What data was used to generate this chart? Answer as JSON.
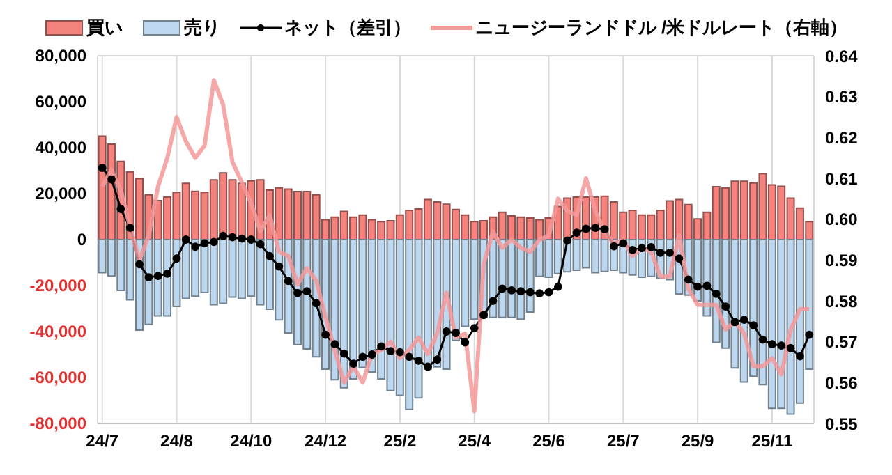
{
  "chart_data": {
    "type": "bar",
    "categories": [
      "24/7",
      null,
      null,
      null,
      null,
      null,
      null,
      null,
      "24/8",
      null,
      null,
      null,
      null,
      null,
      null,
      null,
      "24/10",
      null,
      null,
      null,
      null,
      null,
      null,
      null,
      "24/12",
      null,
      null,
      null,
      null,
      null,
      null,
      null,
      "25/2",
      null,
      null,
      null,
      null,
      null,
      null,
      null,
      "25/4",
      null,
      null,
      null,
      null,
      null,
      null,
      null,
      "25/6",
      null,
      null,
      null,
      null,
      null,
      null,
      null,
      "25/7",
      null,
      null,
      null,
      null,
      null,
      null,
      null,
      "25/9",
      null,
      null,
      null,
      null,
      null,
      null,
      null,
      "25/11",
      null,
      null,
      null,
      null
    ],
    "series": [
      {
        "name": "買い",
        "color": "#f4837d",
        "values": [
          45000,
          41500,
          34000,
          29500,
          26500,
          19500,
          17000,
          18500,
          20500,
          24500,
          21000,
          20500,
          26000,
          29000,
          26000,
          24500,
          25500,
          26000,
          21500,
          22500,
          22000,
          20900,
          20900,
          19500,
          8600,
          9800,
          12300,
          9800,
          10700,
          8600,
          7800,
          8200,
          10700,
          12700,
          13300,
          17400,
          16400,
          15400,
          13100,
          10700,
          7800,
          8200,
          9800,
          11900,
          10300,
          9800,
          9400,
          8600,
          9400,
          14400,
          18000,
          18500,
          18500,
          18500,
          18900,
          16400,
          11900,
          12700,
          10700,
          10700,
          12700,
          16800,
          17400,
          15200,
          9000,
          11900,
          23000,
          22500,
          25400,
          25400,
          24600,
          28700,
          23800,
          23200,
          18000,
          13700,
          7800
        ]
      },
      {
        "name": "売り",
        "color": "#bdd7ee",
        "values": [
          -14400,
          -15800,
          -22100,
          -26200,
          -39400,
          -36900,
          -33200,
          -33200,
          -29100,
          -25600,
          -24600,
          -23000,
          -28300,
          -27700,
          -25000,
          -25600,
          -24600,
          -28300,
          -30300,
          -34900,
          -40600,
          -45700,
          -47600,
          -51000,
          -56400,
          -61000,
          -64500,
          -60600,
          -55600,
          -57600,
          -60600,
          -65700,
          -67700,
          -73900,
          -68900,
          -56400,
          -55400,
          -56400,
          -43900,
          -37700,
          -34600,
          -33900,
          -33900,
          -33900,
          -33900,
          -34600,
          -31500,
          -16000,
          -16400,
          -14800,
          -14000,
          -13300,
          -12300,
          -14400,
          -13900,
          -13300,
          -14400,
          -15400,
          -16400,
          -16000,
          -16800,
          -17400,
          -23600,
          -24200,
          -26700,
          -33200,
          -44700,
          -47200,
          -55800,
          -62000,
          -59500,
          -63100,
          -73400,
          -73400,
          -75900,
          -71100,
          -56400
        ]
      },
      {
        "name": "ネット（差引）",
        "type": "line",
        "color": "#000000",
        "marker": "circle",
        "values": [
          31200,
          26200,
          13300,
          5100,
          -10700,
          -16400,
          -15800,
          -14800,
          -8200,
          0,
          -3100,
          -1600,
          -1000,
          1600,
          1000,
          400,
          0,
          -2000,
          -7200,
          -11700,
          -18000,
          -23200,
          -22500,
          -27700,
          -41400,
          -45500,
          -49600,
          -54000,
          -51000,
          -50000,
          -46500,
          -48500,
          -49000,
          -51000,
          -52700,
          -55300,
          -52200,
          -40000,
          -40600,
          -44700,
          -38500,
          -32800,
          -26700,
          -21300,
          -22100,
          -22500,
          -22900,
          -23400,
          -22900,
          -20500,
          -400,
          3000,
          4700,
          5100,
          4500,
          -2900,
          -1600,
          -4500,
          -3700,
          -3300,
          -5700,
          -5700,
          -8200,
          -17400,
          -20500,
          -20100,
          -23600,
          -29100,
          -35900,
          -34900,
          -37300,
          -43500,
          -45500,
          -46100,
          -47200,
          -50800,
          -41400
        ]
      },
      {
        "name": "ニュージーランドドル /米ドルレート（右軸）",
        "type": "line",
        "axis": "y2",
        "color": "#f4999a",
        "marker": "none",
        "values": [
          0.608,
          0.612,
          0.607,
          0.598,
          0.59,
          0.596,
          0.608,
          0.615,
          0.625,
          0.619,
          0.615,
          0.618,
          0.634,
          0.628,
          0.614,
          0.609,
          0.604,
          0.597,
          0.601,
          0.592,
          0.591,
          0.584,
          0.588,
          0.585,
          0.576,
          0.568,
          0.56,
          0.564,
          0.56,
          0.567,
          0.568,
          0.57,
          0.566,
          0.568,
          0.571,
          0.567,
          0.572,
          0.582,
          0.571,
          0.572,
          0.553,
          0.589,
          0.597,
          0.593,
          0.595,
          0.593,
          0.592,
          0.595,
          0.596,
          0.605,
          0.602,
          0.601,
          0.61,
          0.602,
          0.597,
          0.594,
          0.595,
          0.591,
          0.593,
          0.592,
          0.586,
          0.586,
          0.596,
          0.583,
          0.579,
          0.579,
          0.579,
          0.573,
          0.575,
          0.572,
          0.564,
          0.564,
          0.566,
          0.562,
          0.573,
          0.578,
          0.578
        ]
      }
    ],
    "stacked": true,
    "ylim": [
      -80000,
      80000
    ],
    "yticks": [
      {
        "value": -80000,
        "label": "-80,000"
      },
      {
        "value": -60000,
        "label": "-60,000"
      },
      {
        "value": -40000,
        "label": "-40,000"
      },
      {
        "value": -20000,
        "label": "-20,000"
      },
      {
        "value": 0,
        "label": "0"
      },
      {
        "value": 20000,
        "label": "20,000"
      },
      {
        "value": 40000,
        "label": "40,000"
      },
      {
        "value": 60000,
        "label": "60,000"
      },
      {
        "value": 80000,
        "label": "80,000"
      }
    ],
    "y2lim": [
      0.55,
      0.64
    ],
    "y2ticks": [
      {
        "value": 0.55,
        "label": "0.55"
      },
      {
        "value": 0.56,
        "label": "0.56"
      },
      {
        "value": 0.57,
        "label": "0.57"
      },
      {
        "value": 0.58,
        "label": "0.58"
      },
      {
        "value": 0.59,
        "label": "0.59"
      },
      {
        "value": 0.6,
        "label": "0.60"
      },
      {
        "value": 0.61,
        "label": "0.61"
      },
      {
        "value": 0.62,
        "label": "0.62"
      },
      {
        "value": 0.63,
        "label": "0.63"
      },
      {
        "value": 0.64,
        "label": "0.64"
      }
    ],
    "grid": true,
    "legend": "top"
  }
}
